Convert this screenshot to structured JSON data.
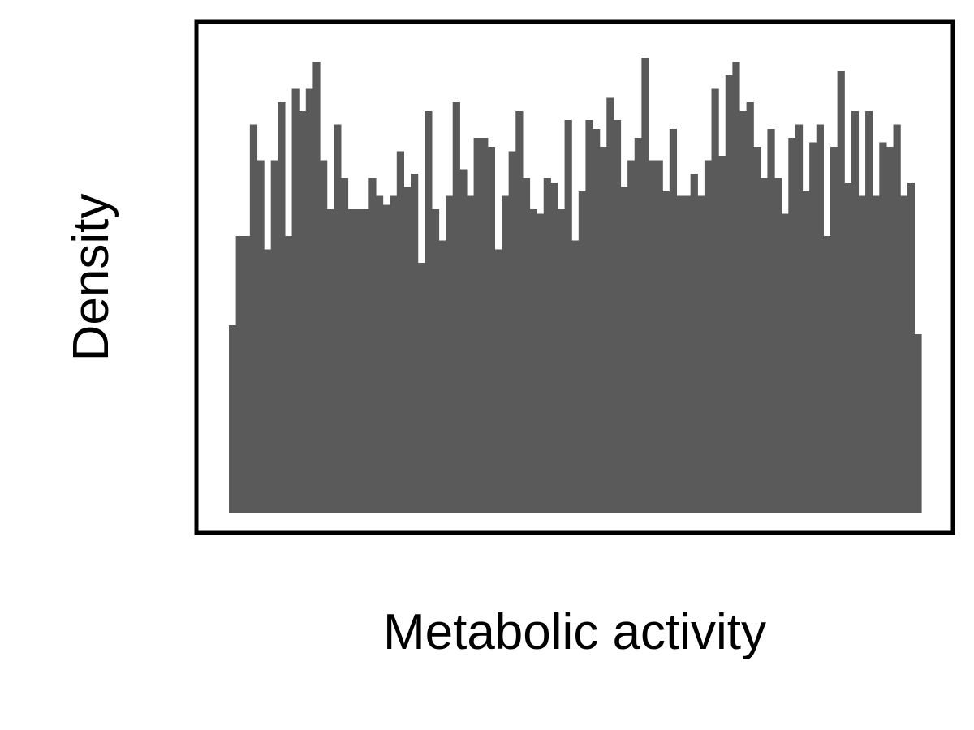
{
  "chart_data": {
    "type": "bar",
    "subtype": "histogram",
    "xlabel": "Metabolic activity",
    "ylabel": "Density",
    "grid": false,
    "legend": "none",
    "tick_labels_shown": false,
    "ylim": [
      0,
      1.1
    ],
    "bar_color": "#5a5a5a",
    "frame_color": "#000000",
    "values": [
      0.42,
      0.62,
      0.62,
      0.87,
      0.79,
      0.59,
      0.79,
      0.92,
      0.62,
      0.95,
      0.9,
      0.95,
      1.01,
      0.79,
      0.68,
      0.87,
      0.75,
      0.68,
      0.68,
      0.68,
      0.75,
      0.71,
      0.69,
      0.71,
      0.81,
      0.73,
      0.76,
      0.56,
      0.9,
      0.68,
      0.61,
      0.71,
      0.92,
      0.77,
      0.71,
      0.84,
      0.84,
      0.82,
      0.59,
      0.71,
      0.81,
      0.9,
      0.75,
      0.68,
      0.67,
      0.75,
      0.74,
      0.68,
      0.88,
      0.61,
      0.72,
      0.88,
      0.86,
      0.82,
      0.93,
      0.88,
      0.73,
      0.79,
      0.84,
      1.02,
      0.79,
      0.79,
      0.72,
      0.86,
      0.71,
      0.71,
      0.76,
      0.71,
      0.79,
      0.95,
      0.8,
      0.98,
      1.01,
      0.9,
      0.92,
      0.82,
      0.75,
      0.86,
      0.75,
      0.67,
      0.84,
      0.87,
      0.72,
      0.83,
      0.87,
      0.62,
      0.82,
      0.99,
      0.74,
      0.9,
      0.71,
      0.9,
      0.71,
      0.83,
      0.82,
      0.87,
      0.71,
      0.74,
      0.4
    ]
  }
}
